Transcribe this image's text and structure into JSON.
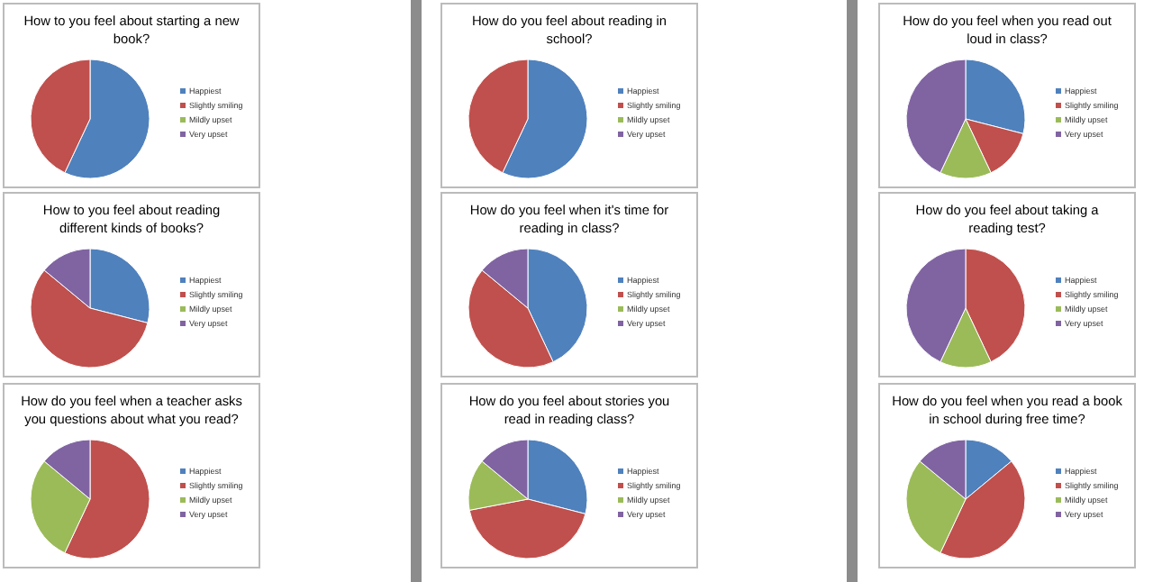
{
  "chart_data": [
    {
      "type": "pie",
      "title": "How to you feel about starting a new book?",
      "categories": [
        "Happiest",
        "Slightly smiling",
        "Mildly upset",
        "Very upset"
      ],
      "values": [
        57,
        43,
        0,
        0
      ],
      "colors": [
        "#4f81bd",
        "#c0504d",
        "#9bbb59",
        "#8064a2"
      ],
      "legend": "right"
    },
    {
      "type": "pie",
      "title": "How do you feel about reading in school?",
      "categories": [
        "Happiest",
        "Slightly smiling",
        "Mildly upset",
        "Very upset"
      ],
      "values": [
        57,
        43,
        0,
        0
      ],
      "colors": [
        "#4f81bd",
        "#c0504d",
        "#9bbb59",
        "#8064a2"
      ],
      "legend": "right"
    },
    {
      "type": "pie",
      "title": "How do you feel when you read out loud in class?",
      "categories": [
        "Happiest",
        "Slightly smiling",
        "Mildly upset",
        "Very upset"
      ],
      "values": [
        29,
        14,
        14,
        43
      ],
      "colors": [
        "#4f81bd",
        "#c0504d",
        "#9bbb59",
        "#8064a2"
      ],
      "legend": "right"
    },
    {
      "type": "pie",
      "title": "How to you feel about reading different kinds of books?",
      "categories": [
        "Happiest",
        "Slightly smiling",
        "Mildly upset",
        "Very upset"
      ],
      "values": [
        29,
        57,
        0,
        14
      ],
      "colors": [
        "#4f81bd",
        "#c0504d",
        "#9bbb59",
        "#8064a2"
      ],
      "legend": "right"
    },
    {
      "type": "pie",
      "title": "How do you feel when it's time for reading in class?",
      "categories": [
        "Happiest",
        "Slightly smiling",
        "Mildly upset",
        "Very upset"
      ],
      "values": [
        43,
        43,
        0,
        14
      ],
      "colors": [
        "#4f81bd",
        "#c0504d",
        "#9bbb59",
        "#8064a2"
      ],
      "legend": "right"
    },
    {
      "type": "pie",
      "title": "How do you feel about taking a reading test?",
      "categories": [
        "Happiest",
        "Slightly smiling",
        "Mildly upset",
        "Very upset"
      ],
      "values": [
        0,
        43,
        14,
        43
      ],
      "colors": [
        "#4f81bd",
        "#c0504d",
        "#9bbb59",
        "#8064a2"
      ],
      "legend": "right"
    },
    {
      "type": "pie",
      "title": "How do you feel when a teacher asks you questions about what you read?",
      "categories": [
        "Happiest",
        "Slightly smiling",
        "Mildly upset",
        "Very upset"
      ],
      "values": [
        0,
        57,
        29,
        14
      ],
      "colors": [
        "#4f81bd",
        "#c0504d",
        "#9bbb59",
        "#8064a2"
      ],
      "legend": "right"
    },
    {
      "type": "pie",
      "title": "How do you feel about stories you read in reading class?",
      "categories": [
        "Happiest",
        "Slightly smiling",
        "Mildly upset",
        "Very upset"
      ],
      "values": [
        29,
        43,
        14,
        14
      ],
      "colors": [
        "#4f81bd",
        "#c0504d",
        "#9bbb59",
        "#8064a2"
      ],
      "legend": "right"
    },
    {
      "type": "pie",
      "title": "How do you feel when you read a book in school during free time?",
      "categories": [
        "Happiest",
        "Slightly smiling",
        "Mildly upset",
        "Very upset"
      ],
      "values": [
        14,
        43,
        29,
        14
      ],
      "colors": [
        "#4f81bd",
        "#c0504d",
        "#9bbb59",
        "#8064a2"
      ],
      "legend": "right"
    }
  ]
}
